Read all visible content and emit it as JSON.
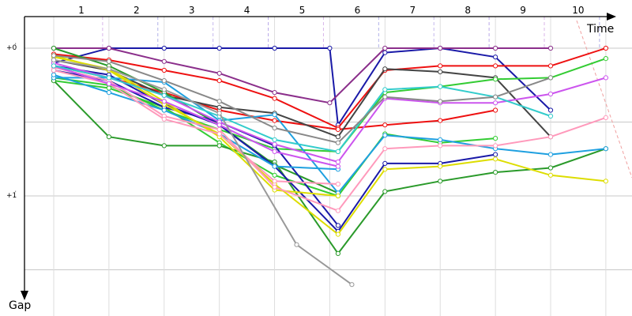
{
  "chart_data": {
    "type": "line",
    "xlabel": "Time",
    "ylabel": "Gap",
    "x_ticks": [
      "1",
      "2",
      "3",
      "4",
      "5",
      "6",
      "7",
      "8",
      "9",
      "10"
    ],
    "y_ticks": [
      {
        "value": 0,
        "label": "+0",
        "sup": "'"
      },
      {
        "value": 1,
        "label": "+1",
        "sup": "'"
      }
    ],
    "xlim": [
      0.2,
      11.5
    ],
    "ylim": [
      -0.15,
      1.52
    ],
    "legend": "none",
    "grid": "on",
    "series": [
      {
        "color": "#1a1aa8",
        "points": [
          [
            1,
            0.1
          ],
          [
            2,
            0.0
          ],
          [
            3,
            0.0
          ],
          [
            4,
            0.0
          ],
          [
            5,
            0.0
          ],
          [
            6,
            0.0
          ],
          [
            6.15,
            0.52
          ],
          [
            7,
            0.03
          ],
          [
            8,
            0.0
          ],
          [
            9,
            0.06
          ],
          [
            10,
            0.42
          ]
        ]
      },
      {
        "color": "#8b2f8b",
        "points": [
          [
            1,
            0.0
          ],
          [
            2,
            0.0
          ],
          [
            3,
            0.09
          ],
          [
            4,
            0.17
          ],
          [
            5,
            0.3
          ],
          [
            6,
            0.37
          ],
          [
            7,
            0.0
          ],
          [
            8,
            0.0
          ],
          [
            9,
            0.0
          ],
          [
            10,
            0.0
          ]
        ]
      },
      {
        "color": "#ee1111",
        "points": [
          [
            1,
            0.04
          ],
          [
            2,
            0.08
          ],
          [
            3,
            0.15
          ],
          [
            4,
            0.22
          ],
          [
            5,
            0.34
          ],
          [
            6.15,
            0.54
          ],
          [
            7,
            0.15
          ],
          [
            8,
            0.12
          ],
          [
            9,
            0.12
          ],
          [
            10,
            0.12
          ],
          [
            11,
            0.0
          ]
        ]
      },
      {
        "color": "#ee1111",
        "points": [
          [
            1,
            0.12
          ],
          [
            2,
            0.2
          ],
          [
            3,
            0.3
          ],
          [
            4,
            0.42
          ],
          [
            5,
            0.49
          ],
          [
            6.15,
            0.55
          ],
          [
            7,
            0.52
          ],
          [
            8,
            0.49
          ],
          [
            9,
            0.42
          ]
        ]
      },
      {
        "color": "#444444",
        "points": [
          [
            1,
            0.08
          ],
          [
            2,
            0.15
          ],
          [
            3,
            0.32
          ],
          [
            4,
            0.4
          ],
          [
            5,
            0.44
          ],
          [
            6.15,
            0.6
          ],
          [
            7,
            0.14
          ],
          [
            8,
            0.16
          ],
          [
            9,
            0.2
          ],
          [
            10,
            0.6
          ]
        ]
      },
      {
        "color": "#33cc33",
        "points": [
          [
            1,
            0.2
          ],
          [
            2,
            0.25
          ],
          [
            3,
            0.42
          ],
          [
            4,
            0.55
          ],
          [
            5,
            0.68
          ],
          [
            6.15,
            0.7
          ],
          [
            7,
            0.3
          ],
          [
            8,
            0.26
          ],
          [
            9,
            0.21
          ],
          [
            10,
            0.2
          ],
          [
            11,
            0.07
          ]
        ]
      },
      {
        "color": "#33cc33",
        "points": [
          [
            1,
            0.22
          ],
          [
            2,
            0.27
          ],
          [
            3,
            0.4
          ],
          [
            4,
            0.64
          ],
          [
            5,
            0.86
          ],
          [
            6.15,
            1.0
          ],
          [
            7,
            0.58
          ],
          [
            8,
            0.64
          ],
          [
            9,
            0.61
          ]
        ]
      },
      {
        "color": "#2a9a2a",
        "points": [
          [
            1,
            0.22
          ],
          [
            2,
            0.6
          ],
          [
            3,
            0.66
          ],
          [
            4,
            0.66
          ],
          [
            5,
            0.77
          ],
          [
            6.15,
            1.39
          ],
          [
            7,
            0.97
          ],
          [
            8,
            0.9
          ],
          [
            9,
            0.84
          ],
          [
            10,
            0.81
          ],
          [
            11,
            0.68
          ]
        ]
      },
      {
        "color": "#2a9a2a",
        "points": [
          [
            1,
            0.0
          ],
          [
            2,
            0.12
          ],
          [
            3,
            0.3
          ],
          [
            4,
            0.52
          ],
          [
            5,
            0.79
          ],
          [
            6.15,
            0.98
          ]
        ]
      },
      {
        "color": "#1a1aa8",
        "points": [
          [
            1,
            0.12
          ],
          [
            2,
            0.18
          ],
          [
            3,
            0.38
          ],
          [
            4,
            0.52
          ],
          [
            5,
            0.8
          ],
          [
            6.15,
            1.24
          ],
          [
            7,
            0.78
          ],
          [
            8,
            0.78
          ],
          [
            9,
            0.72
          ]
        ]
      },
      {
        "color": "#1a1aa8",
        "points": [
          [
            1,
            0.15
          ],
          [
            2,
            0.22
          ],
          [
            3,
            0.4
          ],
          [
            4,
            0.5
          ],
          [
            5,
            0.66
          ],
          [
            6.15,
            1.2
          ]
        ]
      },
      {
        "color": "#1fa0e0",
        "points": [
          [
            1,
            0.2
          ],
          [
            2,
            0.2
          ],
          [
            3,
            0.23
          ],
          [
            4,
            0.49
          ],
          [
            5,
            0.45
          ],
          [
            6.15,
            0.98
          ],
          [
            7,
            0.59
          ],
          [
            8,
            0.62
          ],
          [
            9,
            0.68
          ],
          [
            10,
            0.72
          ],
          [
            11,
            0.68
          ]
        ]
      },
      {
        "color": "#1fa0e0",
        "points": [
          [
            1,
            0.18
          ],
          [
            2,
            0.3
          ],
          [
            3,
            0.42
          ],
          [
            4,
            0.58
          ],
          [
            5,
            0.8
          ],
          [
            6.15,
            0.82
          ]
        ]
      },
      {
        "color": "#dddd00",
        "points": [
          [
            1,
            0.05
          ],
          [
            2,
            0.15
          ],
          [
            3,
            0.38
          ],
          [
            4,
            0.58
          ],
          [
            5,
            0.92
          ],
          [
            6.15,
            1.26
          ],
          [
            7,
            0.82
          ],
          [
            8,
            0.8
          ],
          [
            9,
            0.75
          ],
          [
            10,
            0.86
          ],
          [
            11,
            0.9
          ]
        ]
      },
      {
        "color": "#dddd00",
        "points": [
          [
            1,
            0.06
          ],
          [
            2,
            0.14
          ],
          [
            3,
            0.36
          ],
          [
            4,
            0.6
          ],
          [
            5,
            0.96
          ],
          [
            6.15,
            1.0
          ]
        ]
      },
      {
        "color": "#ff99bb",
        "points": [
          [
            1,
            0.13
          ],
          [
            2,
            0.22
          ],
          [
            3,
            0.46
          ],
          [
            4,
            0.55
          ],
          [
            5,
            0.94
          ],
          [
            6.15,
            1.1
          ],
          [
            7,
            0.68
          ],
          [
            8,
            0.66
          ],
          [
            9,
            0.66
          ],
          [
            10,
            0.6
          ],
          [
            11,
            0.47
          ]
        ]
      },
      {
        "color": "#ff99bb",
        "points": [
          [
            1,
            0.15
          ],
          [
            2,
            0.24
          ],
          [
            3,
            0.48
          ],
          [
            4,
            0.58
          ],
          [
            5,
            0.9
          ],
          [
            6.15,
            0.92
          ]
        ]
      },
      {
        "color": "#cc55ee",
        "points": [
          [
            1,
            0.1
          ],
          [
            2,
            0.2
          ],
          [
            3,
            0.32
          ],
          [
            4,
            0.5
          ],
          [
            5,
            0.65
          ],
          [
            6.15,
            0.77
          ],
          [
            7,
            0.34
          ],
          [
            8,
            0.37
          ],
          [
            9,
            0.37
          ],
          [
            10,
            0.31
          ],
          [
            11,
            0.2
          ]
        ]
      },
      {
        "color": "#cc55ee",
        "points": [
          [
            1,
            0.12
          ],
          [
            2,
            0.24
          ],
          [
            3,
            0.36
          ],
          [
            4,
            0.52
          ],
          [
            5,
            0.7
          ],
          [
            6.15,
            0.8
          ]
        ]
      },
      {
        "color": "#33cccc",
        "points": [
          [
            1,
            0.12
          ],
          [
            2,
            0.2
          ],
          [
            3,
            0.32
          ],
          [
            4,
            0.46
          ],
          [
            5,
            0.62
          ],
          [
            6.15,
            0.7
          ],
          [
            7,
            0.28
          ],
          [
            8,
            0.26
          ],
          [
            9,
            0.33
          ],
          [
            10,
            0.46
          ]
        ]
      },
      {
        "color": "#999999",
        "points": [
          [
            1,
            0.08
          ],
          [
            2,
            0.14
          ],
          [
            3,
            0.28
          ],
          [
            4,
            0.44
          ],
          [
            5.4,
            1.33
          ],
          [
            6.4,
            1.6
          ]
        ]
      },
      {
        "color": "#888888",
        "points": [
          [
            1,
            0.05
          ],
          [
            2,
            0.09
          ],
          [
            3,
            0.22
          ],
          [
            4,
            0.36
          ],
          [
            5,
            0.54
          ],
          [
            6.15,
            0.64
          ],
          [
            7,
            0.33
          ],
          [
            8,
            0.36
          ],
          [
            9,
            0.33
          ],
          [
            10,
            0.2
          ]
        ]
      }
    ]
  }
}
